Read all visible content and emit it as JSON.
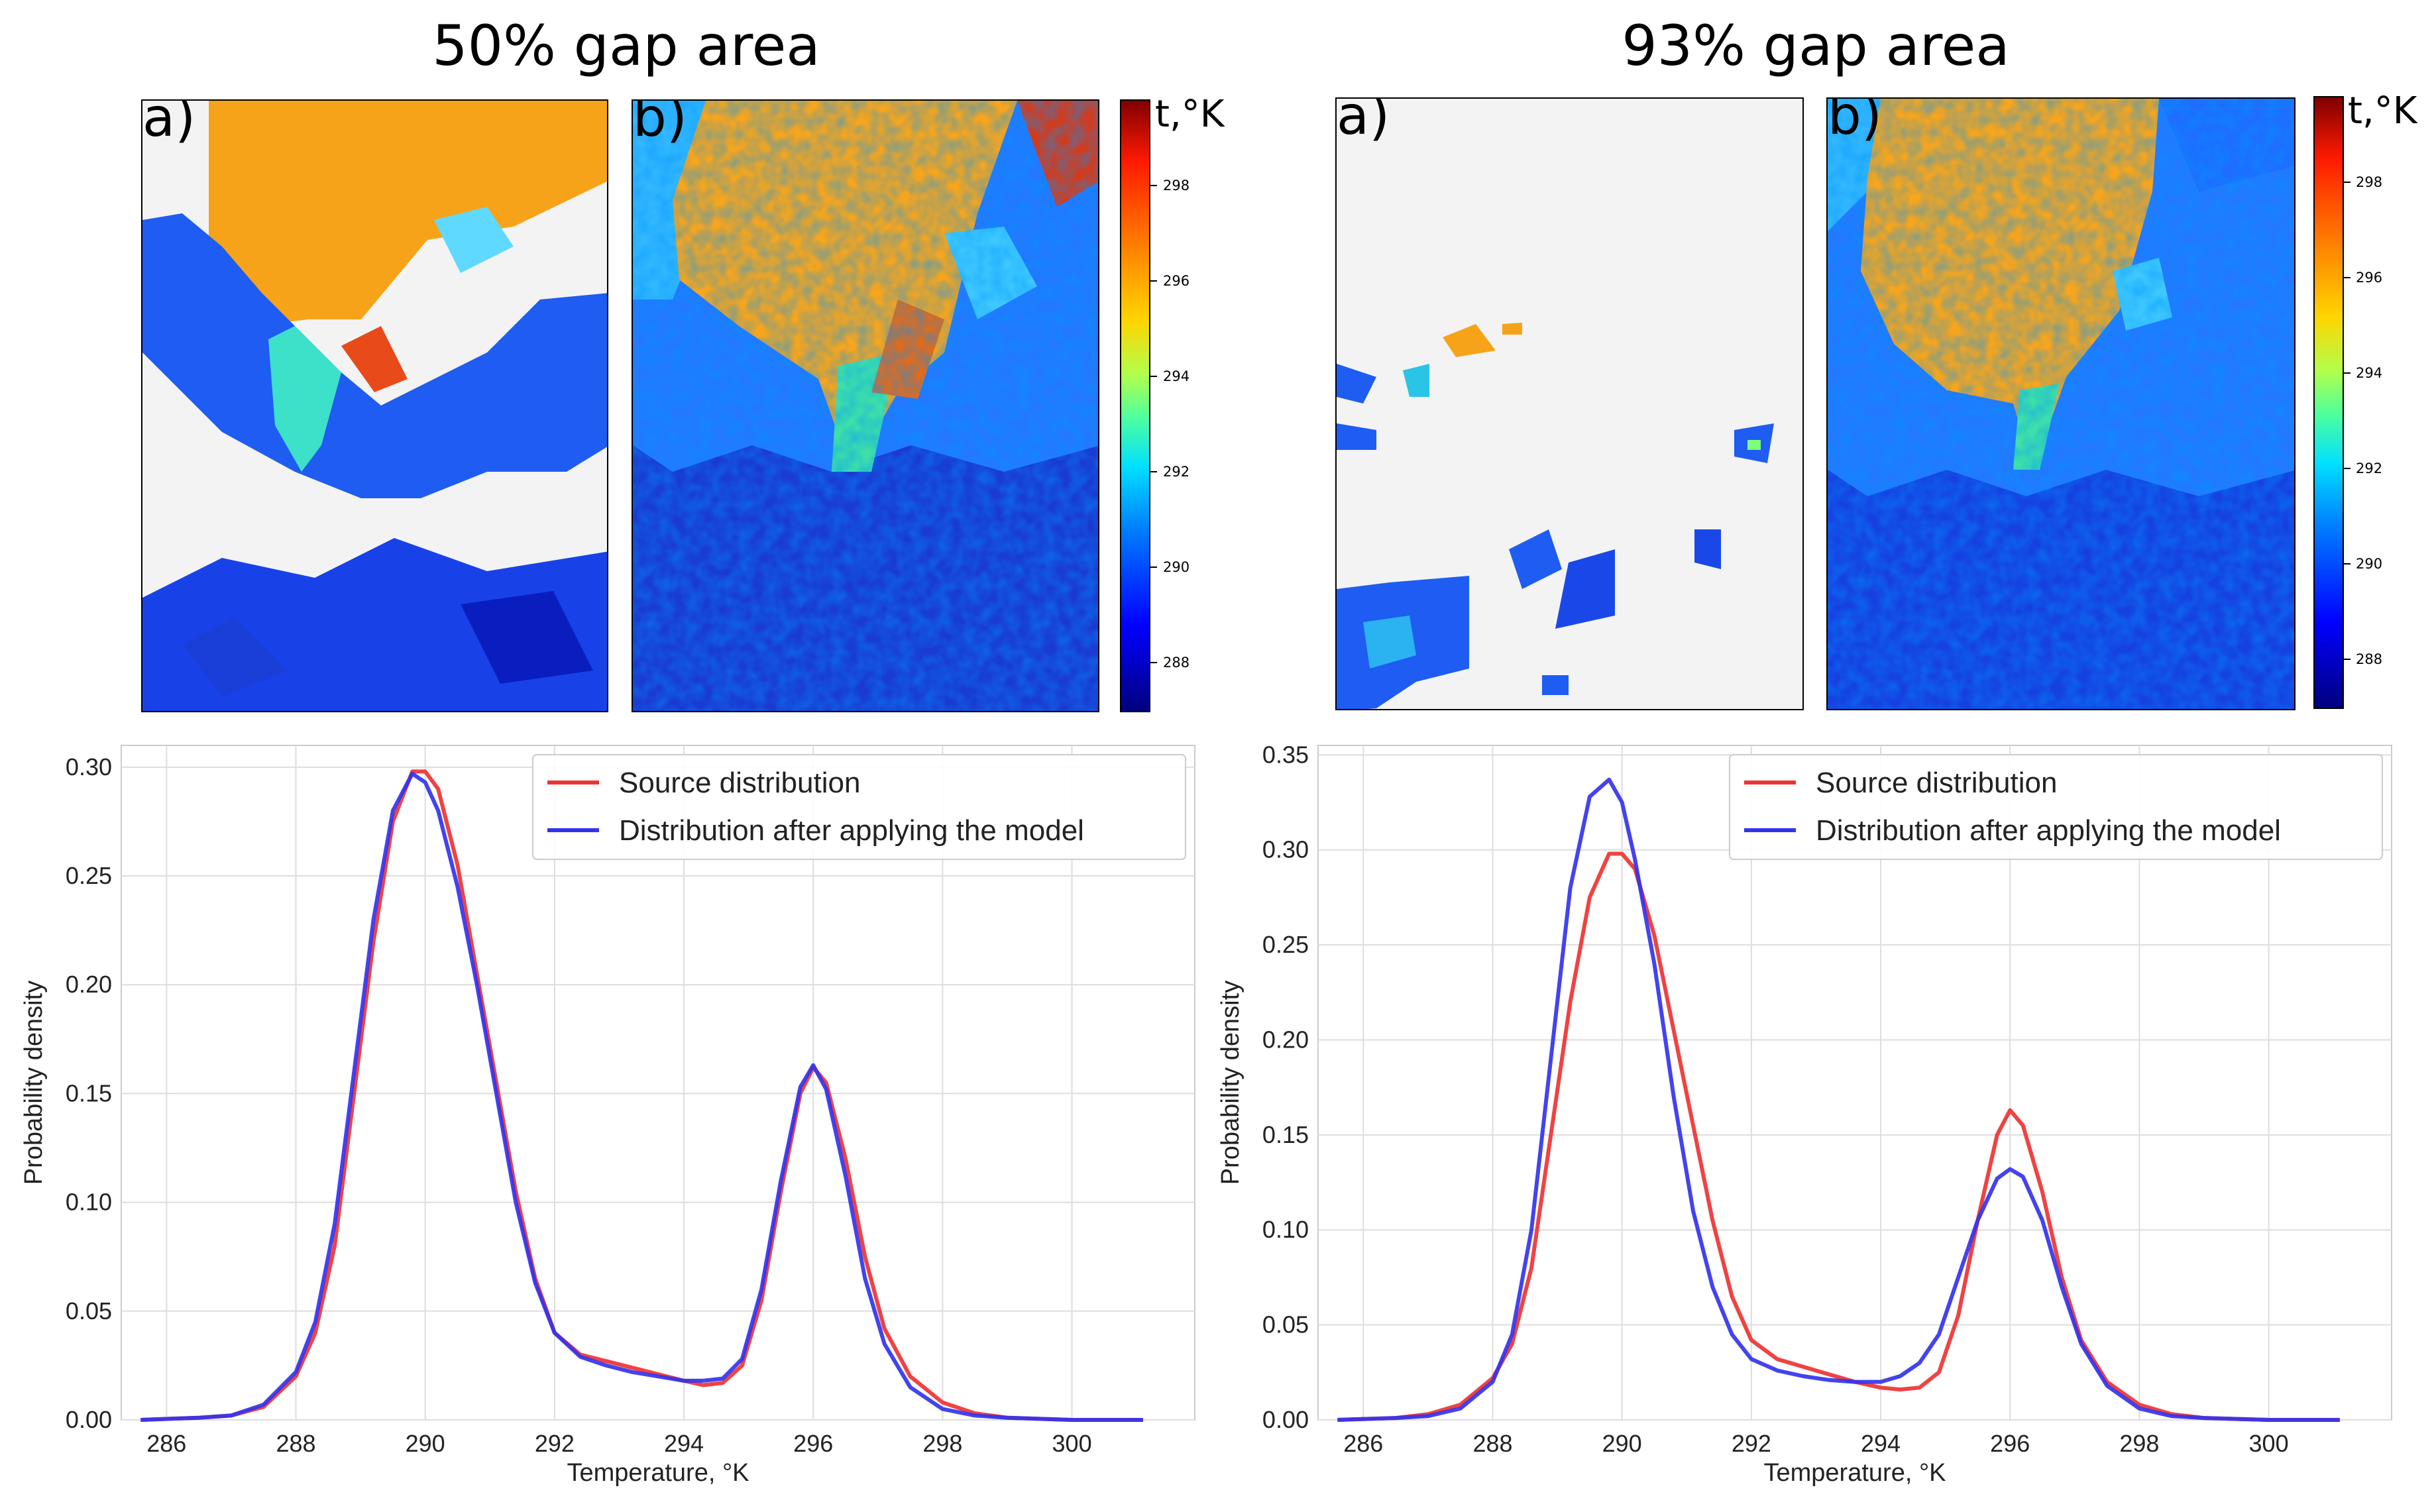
{
  "titles": {
    "left": "50% gap area",
    "right": "93% gap area"
  },
  "map_labels": {
    "a": "a)",
    "b": "b)"
  },
  "colorbar": {
    "title": "t,°K",
    "ticks": [
      288,
      290,
      292,
      294,
      296,
      298
    ],
    "range": [
      287,
      299
    ],
    "colormap": "jet"
  },
  "colors": {
    "source": "#ee3333",
    "model": "#3333ee",
    "gap_fill": "#f3f3f3",
    "grid": "#dddddd"
  },
  "chart_data": [
    {
      "type": "line",
      "title": "50% gap area",
      "xlabel": "Temperature, °K",
      "ylabel": "Probability density",
      "xlim": [
        285.3,
        301.9
      ],
      "ylim": [
        0,
        0.31
      ],
      "xticks": [
        286,
        288,
        290,
        292,
        294,
        296,
        298,
        300
      ],
      "yticks": [
        0.0,
        0.05,
        0.1,
        0.15,
        0.2,
        0.25,
        0.3
      ],
      "legend_position": "top-right",
      "grid": true,
      "series": [
        {
          "name": "Source distribution",
          "color": "#ee3333",
          "x": [
            285.6,
            286.5,
            287.0,
            287.5,
            288.0,
            288.3,
            288.6,
            288.9,
            289.2,
            289.5,
            289.8,
            290.0,
            290.2,
            290.5,
            290.8,
            291.1,
            291.4,
            291.7,
            292.0,
            292.4,
            292.8,
            293.2,
            293.6,
            294.0,
            294.3,
            294.6,
            294.9,
            295.2,
            295.5,
            295.8,
            296.0,
            296.2,
            296.5,
            296.8,
            297.1,
            297.5,
            298.0,
            298.5,
            299.0,
            300.0,
            301.1
          ],
          "y": [
            0.0,
            0.001,
            0.002,
            0.006,
            0.02,
            0.04,
            0.08,
            0.15,
            0.22,
            0.275,
            0.298,
            0.298,
            0.29,
            0.255,
            0.205,
            0.155,
            0.105,
            0.065,
            0.04,
            0.03,
            0.027,
            0.024,
            0.021,
            0.018,
            0.016,
            0.017,
            0.025,
            0.055,
            0.105,
            0.15,
            0.162,
            0.155,
            0.12,
            0.075,
            0.042,
            0.02,
            0.008,
            0.003,
            0.001,
            0.0,
            0.0
          ]
        },
        {
          "name": "Distribution after applying the model",
          "color": "#3333ee",
          "x": [
            285.6,
            286.5,
            287.0,
            287.5,
            288.0,
            288.3,
            288.6,
            288.9,
            289.2,
            289.5,
            289.8,
            290.0,
            290.2,
            290.5,
            290.8,
            291.1,
            291.4,
            291.7,
            292.0,
            292.4,
            292.8,
            293.2,
            293.6,
            294.0,
            294.3,
            294.6,
            294.9,
            295.2,
            295.5,
            295.8,
            296.0,
            296.2,
            296.5,
            296.8,
            297.1,
            297.5,
            298.0,
            298.5,
            299.0,
            300.0,
            301.1
          ],
          "y": [
            0.0,
            0.001,
            0.002,
            0.007,
            0.022,
            0.045,
            0.09,
            0.16,
            0.23,
            0.28,
            0.297,
            0.293,
            0.28,
            0.245,
            0.2,
            0.15,
            0.1,
            0.063,
            0.04,
            0.029,
            0.025,
            0.022,
            0.02,
            0.018,
            0.018,
            0.019,
            0.028,
            0.06,
            0.11,
            0.153,
            0.163,
            0.152,
            0.112,
            0.065,
            0.035,
            0.015,
            0.005,
            0.002,
            0.001,
            0.0,
            0.0
          ]
        }
      ]
    },
    {
      "type": "line",
      "title": "93% gap area",
      "xlabel": "Temperature, °K",
      "ylabel": "Probability density",
      "xlim": [
        285.3,
        301.9
      ],
      "ylim": [
        0,
        0.355
      ],
      "xticks": [
        286,
        288,
        290,
        292,
        294,
        296,
        298,
        300
      ],
      "yticks": [
        0.0,
        0.05,
        0.1,
        0.15,
        0.2,
        0.25,
        0.3,
        0.35
      ],
      "legend_position": "top-right",
      "grid": true,
      "series": [
        {
          "name": "Source distribution",
          "color": "#ee3333",
          "x": [
            285.6,
            286.5,
            287.0,
            287.5,
            288.0,
            288.3,
            288.6,
            288.9,
            289.2,
            289.5,
            289.8,
            290.0,
            290.2,
            290.5,
            290.8,
            291.1,
            291.4,
            291.7,
            292.0,
            292.4,
            292.8,
            293.2,
            293.6,
            294.0,
            294.3,
            294.6,
            294.9,
            295.2,
            295.5,
            295.8,
            296.0,
            296.2,
            296.5,
            296.8,
            297.1,
            297.5,
            298.0,
            298.5,
            299.0,
            300.0,
            301.1
          ],
          "y": [
            0.0,
            0.001,
            0.003,
            0.008,
            0.022,
            0.04,
            0.08,
            0.15,
            0.22,
            0.275,
            0.298,
            0.298,
            0.29,
            0.255,
            0.205,
            0.155,
            0.105,
            0.065,
            0.042,
            0.032,
            0.028,
            0.024,
            0.02,
            0.017,
            0.016,
            0.017,
            0.025,
            0.055,
            0.105,
            0.15,
            0.163,
            0.155,
            0.12,
            0.075,
            0.042,
            0.02,
            0.008,
            0.003,
            0.001,
            0.0,
            0.0
          ]
        },
        {
          "name": "Distribution after applying the model",
          "color": "#3333ee",
          "x": [
            285.6,
            286.5,
            287.0,
            287.5,
            288.0,
            288.3,
            288.6,
            288.9,
            289.2,
            289.5,
            289.8,
            290.0,
            290.2,
            290.5,
            290.8,
            291.1,
            291.4,
            291.7,
            292.0,
            292.4,
            292.8,
            293.2,
            293.6,
            294.0,
            294.3,
            294.6,
            294.9,
            295.2,
            295.5,
            295.8,
            296.0,
            296.2,
            296.5,
            296.8,
            297.1,
            297.5,
            298.0,
            298.5,
            299.0,
            300.0,
            301.1
          ],
          "y": [
            0.0,
            0.001,
            0.002,
            0.006,
            0.02,
            0.045,
            0.1,
            0.19,
            0.28,
            0.328,
            0.337,
            0.325,
            0.295,
            0.24,
            0.17,
            0.11,
            0.07,
            0.045,
            0.032,
            0.026,
            0.023,
            0.021,
            0.02,
            0.02,
            0.023,
            0.03,
            0.045,
            0.075,
            0.105,
            0.127,
            0.132,
            0.128,
            0.105,
            0.07,
            0.04,
            0.018,
            0.006,
            0.002,
            0.001,
            0.0,
            0.0
          ]
        }
      ]
    }
  ]
}
